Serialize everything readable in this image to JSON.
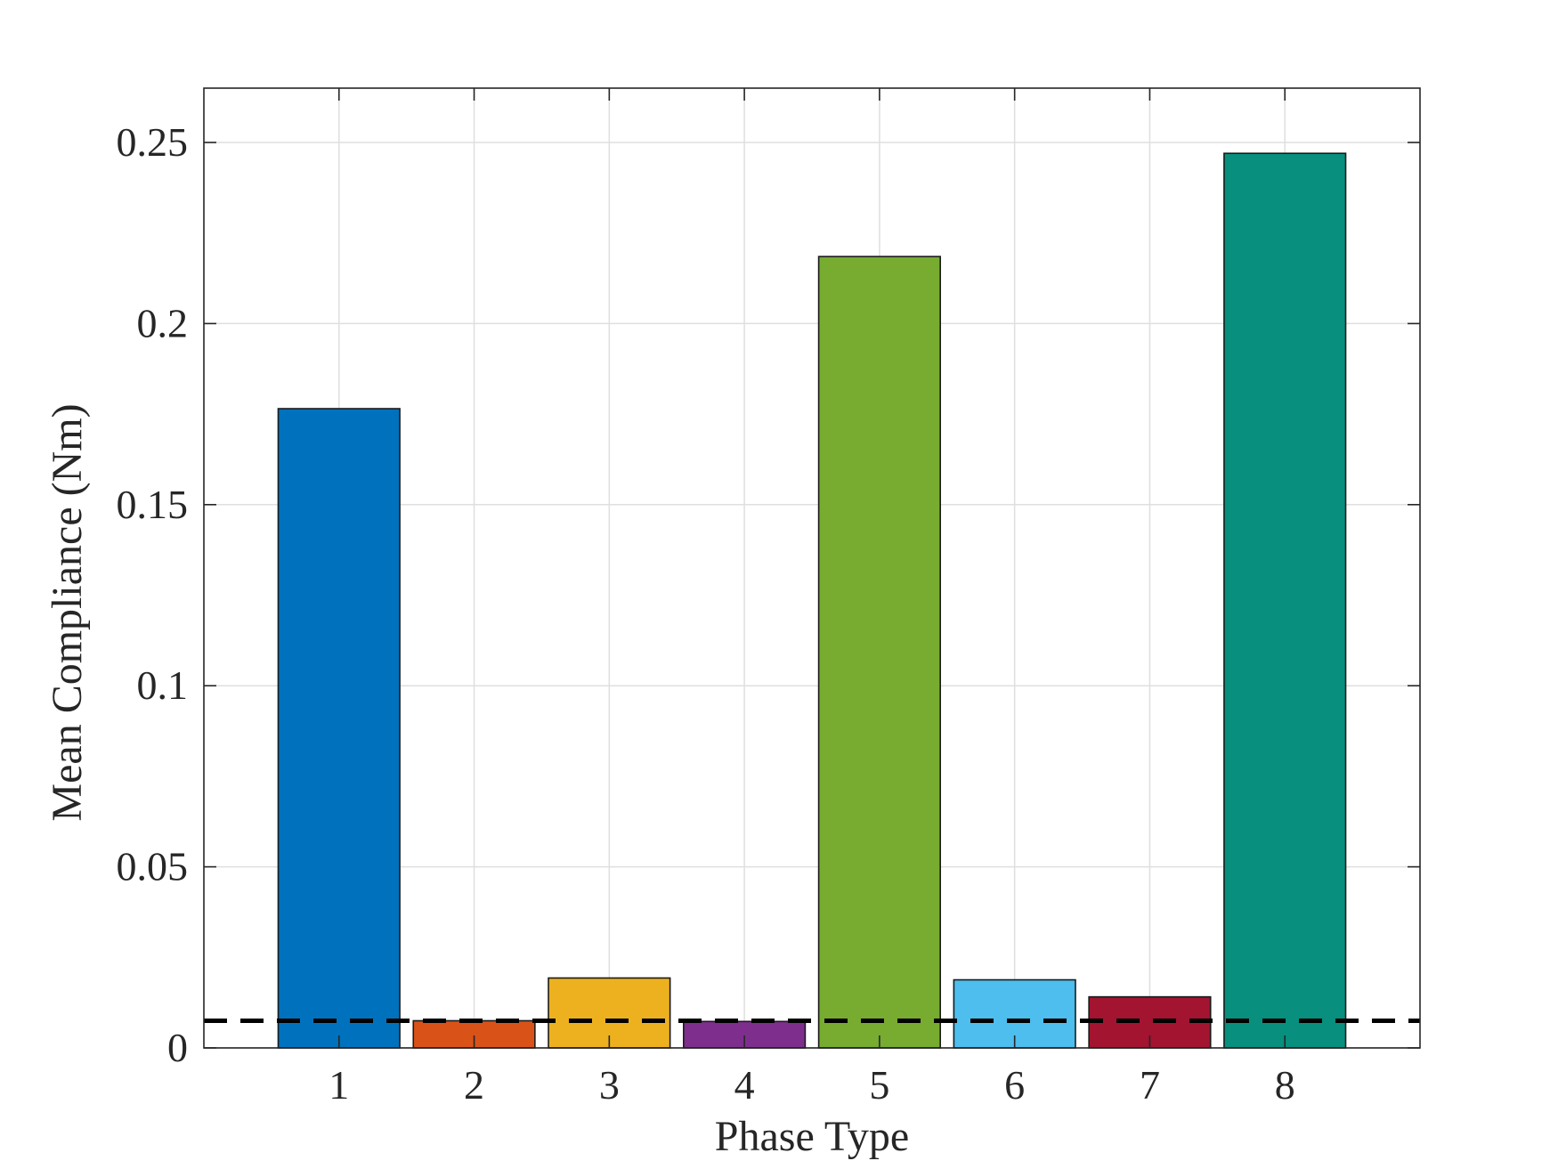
{
  "chart_data": {
    "type": "bar",
    "title": "",
    "xlabel": "Phase Type",
    "ylabel": "Mean Compliance (Nm)",
    "categories": [
      "1",
      "2",
      "3",
      "4",
      "5",
      "6",
      "7",
      "8"
    ],
    "values": [
      0.1765,
      0.0075,
      0.0193,
      0.0073,
      0.2185,
      0.0188,
      0.0141,
      0.247
    ],
    "bar_colors": [
      "#0072bd",
      "#d95319",
      "#edb120",
      "#7e2f8e",
      "#77ac30",
      "#4dbeee",
      "#a2142f",
      "#088f7e"
    ],
    "ylim": [
      0,
      0.265
    ],
    "xlim": [
      0,
      9
    ],
    "yticks": [
      0,
      0.05,
      0.1,
      0.15,
      0.2,
      0.25
    ],
    "ytick_labels": [
      "0",
      "0.05",
      "0.1",
      "0.15",
      "0.2",
      "0.25"
    ],
    "grid": true,
    "reference_line": {
      "value": 0.0075,
      "style": "dashed",
      "color": "#000000"
    }
  }
}
